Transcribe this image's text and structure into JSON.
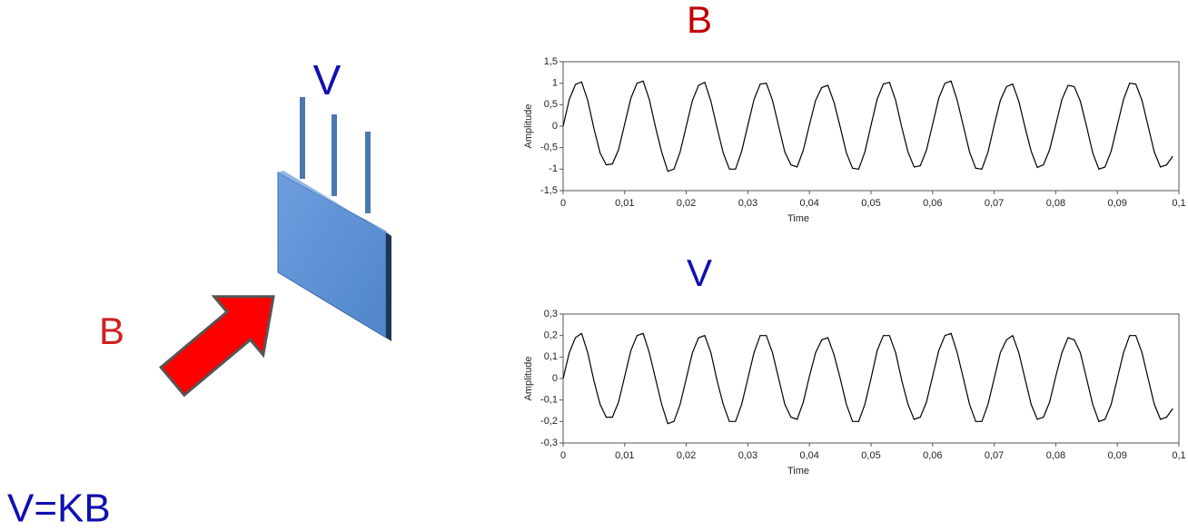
{
  "diagram": {
    "voltage_label": "V",
    "field_label": "B",
    "formula": "V=KB"
  },
  "chart_data": [
    {
      "type": "line",
      "title": "B",
      "x_label": "Time",
      "y_label": "Amplitude",
      "color": "#000000",
      "title_color": "#c00000",
      "xlim": [
        0,
        0.1
      ],
      "ylim": [
        -1.5,
        1.5
      ],
      "xticks": [
        0,
        {
          "value": 0.01,
          "label": "0,01"
        },
        {
          "value": 0.02,
          "label": "0,02"
        },
        {
          "value": 0.03,
          "label": "0,03"
        },
        {
          "value": 0.04,
          "label": "0,04"
        },
        {
          "value": 0.05,
          "label": "0,05"
        },
        {
          "value": 0.06,
          "label": "0,06"
        },
        {
          "value": 0.07,
          "label": "0,07"
        },
        {
          "value": 0.08,
          "label": "0,08"
        },
        {
          "value": 0.09,
          "label": "0,09"
        },
        {
          "value": 0.1,
          "label": "0,1"
        }
      ],
      "yticks": [
        {
          "value": -1.5,
          "label": "-1,5"
        },
        -1,
        {
          "value": -0.5,
          "label": "-0,5"
        },
        0,
        {
          "value": 0.5,
          "label": "0,5"
        },
        1,
        {
          "value": 1.5,
          "label": "1,5"
        }
      ],
      "x": [
        0,
        0.001,
        0.002,
        0.003,
        0.004,
        0.005,
        0.006,
        0.007,
        0.008,
        0.009,
        0.01,
        0.011,
        0.012,
        0.013,
        0.014,
        0.015,
        0.016,
        0.017,
        0.018,
        0.019,
        0.02,
        0.021,
        0.022,
        0.023,
        0.024,
        0.025,
        0.026,
        0.027,
        0.028,
        0.029,
        0.03,
        0.031,
        0.032,
        0.033,
        0.034,
        0.035,
        0.036,
        0.037,
        0.038,
        0.039,
        0.04,
        0.041,
        0.042,
        0.043,
        0.044,
        0.045,
        0.046,
        0.047,
        0.048,
        0.049,
        0.05,
        0.051,
        0.052,
        0.053,
        0.054,
        0.055,
        0.056,
        0.057,
        0.058,
        0.059,
        0.06,
        0.061,
        0.062,
        0.063,
        0.064,
        0.065,
        0.066,
        0.067,
        0.068,
        0.069,
        0.07,
        0.071,
        0.072,
        0.073,
        0.074,
        0.075,
        0.076,
        0.077,
        0.078,
        0.079,
        0.08,
        0.081,
        0.082,
        0.083,
        0.084,
        0.085,
        0.086,
        0.087,
        0.088,
        0.089,
        0.09,
        0.091,
        0.092,
        0.093,
        0.094,
        0.095,
        0.096,
        0.097,
        0.098,
        0.099
      ],
      "values": [
        0,
        0.62,
        0.97,
        1.03,
        0.6,
        -0.05,
        -0.62,
        -0.9,
        -0.88,
        -0.55,
        0.05,
        0.65,
        1.0,
        1.05,
        0.62,
        -0.02,
        -0.6,
        -1.05,
        -1.0,
        -0.6,
        0,
        0.6,
        0.95,
        1.02,
        0.58,
        -0.04,
        -0.62,
        -1.0,
        -1.0,
        -0.58,
        0.02,
        0.62,
        0.98,
        1.0,
        0.6,
        0,
        -0.6,
        -0.9,
        -0.95,
        -0.56,
        0.03,
        0.6,
        0.9,
        0.95,
        0.55,
        -0.02,
        -0.62,
        -0.98,
        -1.0,
        -0.6,
        0.02,
        0.63,
        0.98,
        1.02,
        0.6,
        -0.03,
        -0.6,
        -0.95,
        -0.92,
        -0.56,
        0.04,
        0.65,
        1.0,
        1.05,
        0.6,
        0,
        -0.6,
        -0.98,
        -1.0,
        -0.6,
        0.02,
        0.6,
        0.92,
        0.98,
        0.58,
        -0.02,
        -0.58,
        -0.96,
        -0.9,
        -0.55,
        0.03,
        0.62,
        0.95,
        0.92,
        0.58,
        0,
        -0.62,
        -1.0,
        -0.95,
        -0.58,
        0.02,
        0.62,
        1.0,
        0.98,
        0.6,
        0,
        -0.6,
        -0.95,
        -0.9,
        -0.7
      ]
    },
    {
      "type": "line",
      "title": "V",
      "x_label": "Time",
      "y_label": "Amplitude",
      "color": "#000000",
      "title_color": "#1010b0",
      "xlim": [
        0,
        0.1
      ],
      "ylim": [
        -0.3,
        0.3
      ],
      "xticks": [
        0,
        {
          "value": 0.01,
          "label": "0,01"
        },
        {
          "value": 0.02,
          "label": "0,02"
        },
        {
          "value": 0.03,
          "label": "0,03"
        },
        {
          "value": 0.04,
          "label": "0,04"
        },
        {
          "value": 0.05,
          "label": "0,05"
        },
        {
          "value": 0.06,
          "label": "0,06"
        },
        {
          "value": 0.07,
          "label": "0,07"
        },
        {
          "value": 0.08,
          "label": "0,08"
        },
        {
          "value": 0.09,
          "label": "0,09"
        },
        {
          "value": 0.1,
          "label": "0,1"
        }
      ],
      "yticks": [
        {
          "value": -0.3,
          "label": "-0,3"
        },
        {
          "value": -0.2,
          "label": "-0,2"
        },
        {
          "value": -0.1,
          "label": "-0,1"
        },
        0,
        {
          "value": 0.1,
          "label": "0,1"
        },
        {
          "value": 0.2,
          "label": "0,2"
        },
        {
          "value": 0.3,
          "label": "0,3"
        }
      ],
      "x": [
        0,
        0.001,
        0.002,
        0.003,
        0.004,
        0.005,
        0.006,
        0.007,
        0.008,
        0.009,
        0.01,
        0.011,
        0.012,
        0.013,
        0.014,
        0.015,
        0.016,
        0.017,
        0.018,
        0.019,
        0.02,
        0.021,
        0.022,
        0.023,
        0.024,
        0.025,
        0.026,
        0.027,
        0.028,
        0.029,
        0.03,
        0.031,
        0.032,
        0.033,
        0.034,
        0.035,
        0.036,
        0.037,
        0.038,
        0.039,
        0.04,
        0.041,
        0.042,
        0.043,
        0.044,
        0.045,
        0.046,
        0.047,
        0.048,
        0.049,
        0.05,
        0.051,
        0.052,
        0.053,
        0.054,
        0.055,
        0.056,
        0.057,
        0.058,
        0.059,
        0.06,
        0.061,
        0.062,
        0.063,
        0.064,
        0.065,
        0.066,
        0.067,
        0.068,
        0.069,
        0.07,
        0.071,
        0.072,
        0.073,
        0.074,
        0.075,
        0.076,
        0.077,
        0.078,
        0.079,
        0.08,
        0.081,
        0.082,
        0.083,
        0.084,
        0.085,
        0.086,
        0.087,
        0.088,
        0.089,
        0.09,
        0.091,
        0.092,
        0.093,
        0.094,
        0.095,
        0.096,
        0.097,
        0.098,
        0.099
      ],
      "values": [
        0,
        0.12,
        0.19,
        0.21,
        0.12,
        -0.01,
        -0.12,
        -0.18,
        -0.18,
        -0.11,
        0.01,
        0.13,
        0.2,
        0.21,
        0.12,
        0,
        -0.12,
        -0.21,
        -0.2,
        -0.12,
        0,
        0.12,
        0.19,
        0.2,
        0.12,
        -0.01,
        -0.12,
        -0.2,
        -0.2,
        -0.12,
        0,
        0.12,
        0.2,
        0.2,
        0.12,
        0,
        -0.12,
        -0.18,
        -0.19,
        -0.11,
        0.01,
        0.12,
        0.18,
        0.19,
        0.11,
        0,
        -0.12,
        -0.2,
        -0.2,
        -0.12,
        0,
        0.13,
        0.2,
        0.2,
        0.12,
        -0.01,
        -0.12,
        -0.19,
        -0.18,
        -0.11,
        0.01,
        0.13,
        0.2,
        0.21,
        0.12,
        0,
        -0.12,
        -0.2,
        -0.2,
        -0.12,
        0,
        0.12,
        0.18,
        0.2,
        0.12,
        0,
        -0.12,
        -0.19,
        -0.18,
        -0.11,
        0.01,
        0.12,
        0.19,
        0.18,
        0.12,
        0,
        -0.12,
        -0.2,
        -0.19,
        -0.12,
        0,
        0.12,
        0.2,
        0.2,
        0.12,
        0,
        -0.12,
        -0.19,
        -0.18,
        -0.14
      ]
    }
  ]
}
